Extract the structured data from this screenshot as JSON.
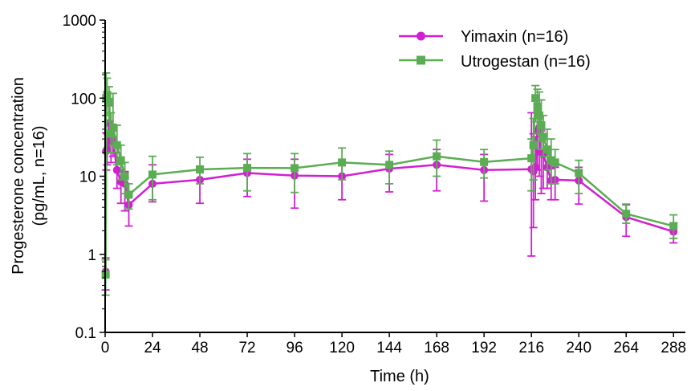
{
  "chart_data": {
    "type": "line",
    "title": "",
    "xlabel": "Time (h)",
    "ylabel": [
      "Progesterone concentration",
      "(pg/mL, n=16)"
    ],
    "xlim": [
      0,
      294
    ],
    "ylim": [
      0.1,
      1000
    ],
    "yscale": "log",
    "grid": false,
    "legend_position": "top-right",
    "xticks": [
      "0",
      "24",
      "48",
      "72",
      "96",
      "120",
      "144",
      "168",
      "192",
      "216",
      "240",
      "264",
      "288"
    ],
    "yticks": [
      "0.1",
      "1",
      "10",
      "100",
      "1000"
    ],
    "series": [
      {
        "name": "Yimaxin (n=16)",
        "color": "#d11fd1",
        "marker": "circle",
        "x": [
          0.25,
          0.5,
          1,
          2,
          3,
          4,
          6,
          8,
          10,
          12,
          24,
          48,
          72,
          96,
          120,
          144,
          168,
          192,
          216,
          217,
          218,
          219,
          220,
          221,
          222,
          224,
          226,
          228,
          240,
          264,
          288
        ],
        "y": [
          0.6,
          21,
          22,
          48,
          27,
          30,
          12,
          8.5,
          8.0,
          4.3,
          8.0,
          9.0,
          11.0,
          10.2,
          10.0,
          12.5,
          14.0,
          12.0,
          12.3,
          11.5,
          13.0,
          38.0,
          42.0,
          20.0,
          19.0,
          13.0,
          8.8,
          9.0,
          8.8,
          3.0,
          1.95
        ],
        "err_low": [
          0.35,
          12,
          14,
          20,
          15,
          18,
          7,
          4.5,
          3.6,
          2.3,
          4.7,
          4.5,
          5.5,
          3.9,
          5.0,
          6.3,
          6.5,
          4.8,
          0.95,
          2.2,
          5.0,
          12.0,
          10.0,
          6.0,
          7.0,
          7.0,
          5.0,
          5.0,
          4.4,
          1.7,
          1.4
        ],
        "err_high": [
          0.9,
          36,
          35,
          80,
          45,
          45,
          20,
          12,
          11.5,
          6.2,
          14.0,
          13.5,
          16.5,
          16.5,
          15.0,
          19.0,
          22.0,
          19.0,
          65.0,
          35.0,
          32.0,
          85.0,
          95.0,
          38.0,
          32.0,
          19.0,
          12.5,
          13.0,
          13.0,
          4.3,
          2.5
        ]
      },
      {
        "name": "Utrogestan (n=16)",
        "color": "#5aad52",
        "marker": "square",
        "x": [
          0.25,
          0.5,
          1,
          2,
          3,
          4,
          6,
          8,
          10,
          12,
          24,
          48,
          72,
          96,
          120,
          144,
          168,
          192,
          216,
          217,
          218,
          219,
          220,
          221,
          222,
          224,
          226,
          228,
          240,
          264,
          288
        ],
        "y": [
          0.55,
          100,
          110,
          90,
          35,
          42,
          25,
          16,
          10,
          5.8,
          10.5,
          12.2,
          12.8,
          12.7,
          15.0,
          14.0,
          18.0,
          15.2,
          17.0,
          25.0,
          100.0,
          75.0,
          60.0,
          45.0,
          32.0,
          22.0,
          16.0,
          15.0,
          11.0,
          3.3,
          2.3
        ],
        "err_low": [
          0.3,
          50,
          60,
          50,
          20,
          25,
          14,
          9,
          6,
          3.8,
          5.0,
          8.0,
          6.5,
          6.2,
          9.0,
          8.0,
          10.0,
          9.5,
          6.5,
          9.0,
          50.0,
          35.0,
          28.0,
          22.0,
          18.0,
          12.0,
          8.0,
          8.0,
          6.0,
          2.5,
          1.6
        ],
        "err_high": [
          0.85,
          210,
          180,
          140,
          65,
          115,
          45,
          25,
          15,
          8.0,
          18.0,
          17.5,
          19.5,
          19.5,
          23.0,
          21.0,
          29.0,
          22.0,
          30.0,
          55.0,
          145.0,
          130.0,
          120.0,
          95.0,
          60.0,
          40.0,
          30.0,
          22.0,
          16.0,
          4.4,
          3.2
        ]
      }
    ]
  }
}
